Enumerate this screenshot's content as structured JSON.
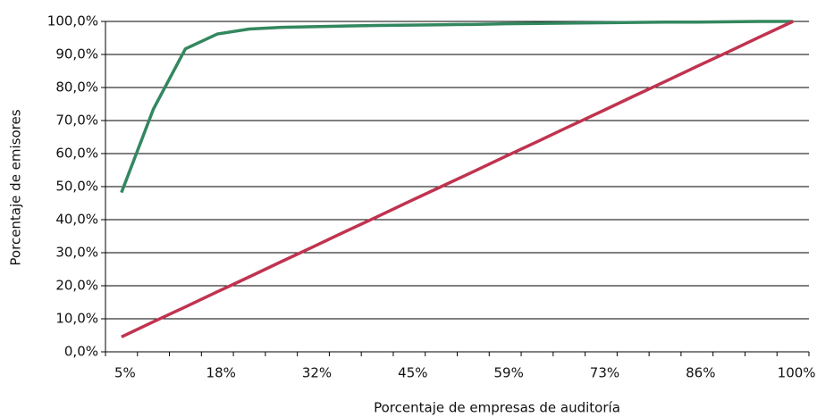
{
  "chart_data": {
    "type": "line",
    "xlabel": "Porcentaje de empresas de auditoría",
    "ylabel": "Porcentaje de emisores",
    "categories": [
      "5%",
      null,
      null,
      "18%",
      null,
      null,
      "32%",
      null,
      null,
      "45%",
      null,
      null,
      "59%",
      null,
      null,
      "73%",
      null,
      null,
      "86%",
      null,
      null,
      "100%"
    ],
    "series": [
      {
        "color": "#33875f",
        "values": [
          48.2,
          73.5,
          91.7,
          96.2,
          97.7,
          98.2,
          98.4,
          98.6,
          98.8,
          98.9,
          99.0,
          99.1,
          99.3,
          99.4,
          99.5,
          99.6,
          99.7,
          99.8,
          99.8,
          99.9,
          100.0,
          100.0
        ]
      },
      {
        "color": "#c0334f",
        "values": [
          4.5,
          9.1,
          13.6,
          18.2,
          22.7,
          27.3,
          31.8,
          36.4,
          40.9,
          45.5,
          50.0,
          54.5,
          59.1,
          63.6,
          68.2,
          72.7,
          77.3,
          81.8,
          86.4,
          90.9,
          95.5,
          100.0
        ]
      }
    ],
    "ylim": [
      0,
      100
    ],
    "yticks": [
      {
        "value": 0,
        "label": "0,0%"
      },
      {
        "value": 10,
        "label": "10,0%"
      },
      {
        "value": 20,
        "label": "20,0%"
      },
      {
        "value": 30,
        "label": "30,0%"
      },
      {
        "value": 40,
        "label": "40,0%"
      },
      {
        "value": 50,
        "label": "50,0%"
      },
      {
        "value": 60,
        "label": "60,0%"
      },
      {
        "value": 70,
        "label": "70,0%"
      },
      {
        "value": 80,
        "label": "80,0%"
      },
      {
        "value": 90,
        "label": "90,0%"
      },
      {
        "value": 100,
        "label": "100,0%"
      }
    ],
    "grid": true
  }
}
